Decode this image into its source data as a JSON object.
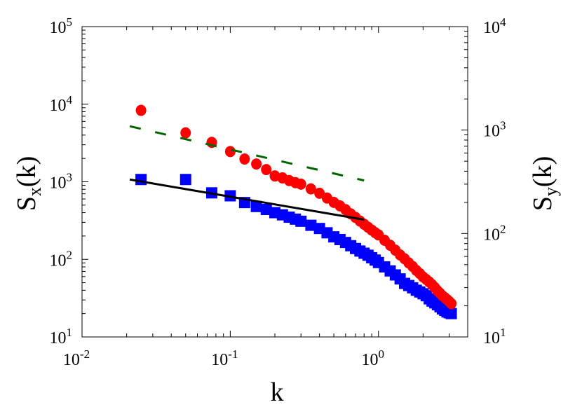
{
  "chart_data": {
    "type": "scatter",
    "title": "",
    "xlabel": "k",
    "ylabel_left": {
      "main": "S",
      "sub": "x",
      "tail": "(k)"
    },
    "ylabel_right": {
      "main": "S",
      "sub": "y",
      "tail": "(k)"
    },
    "x_scale": "log",
    "y_scale": "log",
    "xlim": [
      0.01,
      4
    ],
    "ylim_left": [
      10,
      100000
    ],
    "ylim_right": [
      10,
      10000
    ],
    "grid": false,
    "legend": "none",
    "x_ticks": [
      {
        "base": "10",
        "exp": "-2",
        "value": 0.01
      },
      {
        "base": "10",
        "exp": "-1",
        "value": 0.1
      },
      {
        "base": "10",
        "exp": "0",
        "value": 1
      }
    ],
    "y_ticks_left": [
      {
        "base": "10",
        "exp": "1",
        "value": 10
      },
      {
        "base": "10",
        "exp": "2",
        "value": 100
      },
      {
        "base": "10",
        "exp": "3",
        "value": 1000
      },
      {
        "base": "10",
        "exp": "4",
        "value": 10000
      },
      {
        "base": "10",
        "exp": "5",
        "value": 100000
      }
    ],
    "y_ticks_right": [
      {
        "base": "10",
        "exp": "1",
        "value": 10
      },
      {
        "base": "10",
        "exp": "2",
        "value": 100
      },
      {
        "base": "10",
        "exp": "3",
        "value": 1000
      },
      {
        "base": "10",
        "exp": "4",
        "value": 10000
      }
    ],
    "series": [
      {
        "marker": "square",
        "color": "#0000ff",
        "axis": "left",
        "x": [
          0.025,
          0.05,
          0.075,
          0.1,
          0.125,
          0.15,
          0.175,
          0.2,
          0.225,
          0.25,
          0.275,
          0.3,
          0.35,
          0.4,
          0.45,
          0.5,
          0.55,
          0.6,
          0.65,
          0.7,
          0.75,
          0.8,
          0.85,
          0.9,
          0.95,
          1.0,
          1.1,
          1.2,
          1.3,
          1.4,
          1.5,
          1.6,
          1.7,
          1.8,
          1.9,
          2.0,
          2.1,
          2.2,
          2.3,
          2.4,
          2.5,
          2.6,
          2.7,
          2.8,
          2.9,
          3.0,
          3.1
        ],
        "y": [
          1070,
          1070,
          720,
          660,
          540,
          480,
          440,
          400,
          375,
          350,
          330,
          310,
          275,
          250,
          220,
          195,
          180,
          165,
          150,
          138,
          128,
          120,
          113,
          105,
          98,
          91,
          80,
          71,
          63,
          56,
          49,
          46,
          43,
          40,
          38,
          36,
          34,
          31,
          29,
          27.5,
          26,
          24.5,
          23,
          22,
          21,
          20.5,
          20
        ]
      },
      {
        "marker": "circle",
        "color": "#ff0000",
        "axis": "right",
        "x": [
          0.025,
          0.05,
          0.075,
          0.1,
          0.125,
          0.15,
          0.175,
          0.2,
          0.225,
          0.25,
          0.275,
          0.3,
          0.35,
          0.4,
          0.45,
          0.5,
          0.55,
          0.6,
          0.65,
          0.7,
          0.75,
          0.8,
          0.85,
          0.9,
          0.95,
          1.0,
          1.1,
          1.2,
          1.3,
          1.4,
          1.5,
          1.6,
          1.7,
          1.8,
          1.9,
          2.0,
          2.1,
          2.2,
          2.3,
          2.4,
          2.5,
          2.6,
          2.7,
          2.8,
          2.9,
          3.0,
          3.1
        ],
        "y": [
          1550,
          940,
          760,
          620,
          525,
          470,
          415,
          360,
          345,
          325,
          310,
          300,
          270,
          245,
          220,
          200,
          185,
          170,
          155,
          143,
          132,
          123,
          115,
          108,
          102,
          97,
          86,
          77,
          69,
          62,
          57,
          52,
          48,
          44,
          41,
          38,
          36,
          34,
          32,
          30,
          28,
          26.5,
          25,
          24,
          23,
          22,
          21
        ]
      }
    ],
    "lines": [
      {
        "style": "solid",
        "color": "#000000",
        "axis": "left",
        "x": [
          0.021,
          0.8
        ],
        "y": [
          1070,
          325
        ]
      },
      {
        "style": "dashed",
        "color": "#006400",
        "axis": "left",
        "x": [
          0.021,
          0.8
        ],
        "y": [
          5200,
          1040
        ]
      }
    ]
  }
}
